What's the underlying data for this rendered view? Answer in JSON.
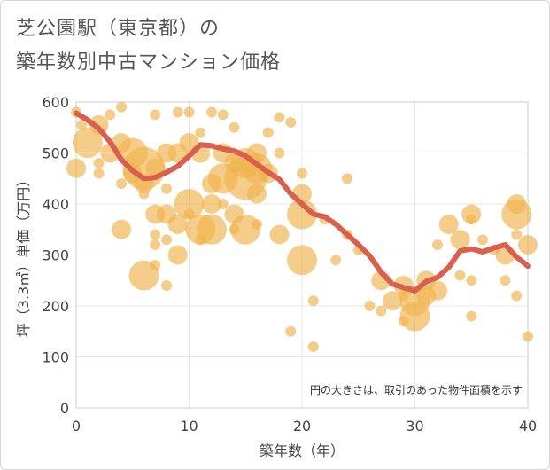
{
  "title_lines": [
    "芝公園駅（東京都）の",
    "築年数別中古マンション価格"
  ],
  "colors": {
    "bubble": "#f0b24d",
    "trend": "#d9604f",
    "grid": "#e6e6e6",
    "plot_border": "#cccccc"
  },
  "chart_data": {
    "type": "scatter",
    "title": "芝公園駅（東京都）の 築年数別中古マンション価格",
    "xlabel": "築年数（年）",
    "ylabel": "坪（3.3㎡）単価（万円）",
    "xlim": [
      0,
      40
    ],
    "ylim": [
      0,
      600
    ],
    "xticks": [
      0,
      10,
      20,
      30,
      40
    ],
    "yticks": [
      0,
      100,
      200,
      300,
      400,
      500,
      600
    ],
    "grid": true,
    "annotation": "円の大きさは、取引のあった物件面積を示す",
    "points": [
      {
        "x": 0,
        "y": 580,
        "s": 1
      },
      {
        "x": 0,
        "y": 470,
        "s": 2
      },
      {
        "x": 0.5,
        "y": 555,
        "s": 1
      },
      {
        "x": 1,
        "y": 520,
        "s": 3
      },
      {
        "x": 2,
        "y": 555,
        "s": 2
      },
      {
        "x": 2,
        "y": 480,
        "s": 1
      },
      {
        "x": 2,
        "y": 460,
        "s": 1
      },
      {
        "x": 3,
        "y": 575,
        "s": 1
      },
      {
        "x": 3,
        "y": 500,
        "s": 2
      },
      {
        "x": 4,
        "y": 590,
        "s": 1
      },
      {
        "x": 4,
        "y": 520,
        "s": 2
      },
      {
        "x": 4,
        "y": 440,
        "s": 1
      },
      {
        "x": 4,
        "y": 350,
        "s": 2
      },
      {
        "x": 5,
        "y": 500,
        "s": 3
      },
      {
        "x": 5,
        "y": 460,
        "s": 2
      },
      {
        "x": 6,
        "y": 470,
        "s": 4
      },
      {
        "x": 6,
        "y": 440,
        "s": 2
      },
      {
        "x": 6,
        "y": 420,
        "s": 1
      },
      {
        "x": 6,
        "y": 260,
        "s": 3
      },
      {
        "x": 7,
        "y": 575,
        "s": 1
      },
      {
        "x": 7,
        "y": 470,
        "s": 2
      },
      {
        "x": 7,
        "y": 380,
        "s": 2
      },
      {
        "x": 7,
        "y": 340,
        "s": 1
      },
      {
        "x": 7,
        "y": 320,
        "s": 1
      },
      {
        "x": 7,
        "y": 280,
        "s": 1
      },
      {
        "x": 8,
        "y": 500,
        "s": 2
      },
      {
        "x": 8,
        "y": 430,
        "s": 1
      },
      {
        "x": 8,
        "y": 380,
        "s": 2
      },
      {
        "x": 8,
        "y": 330,
        "s": 1
      },
      {
        "x": 8,
        "y": 240,
        "s": 1
      },
      {
        "x": 9,
        "y": 580,
        "s": 1
      },
      {
        "x": 9,
        "y": 500,
        "s": 2
      },
      {
        "x": 9,
        "y": 360,
        "s": 2
      },
      {
        "x": 9,
        "y": 300,
        "s": 2
      },
      {
        "x": 10,
        "y": 580,
        "s": 1
      },
      {
        "x": 10,
        "y": 520,
        "s": 2
      },
      {
        "x": 10,
        "y": 400,
        "s": 3
      },
      {
        "x": 10,
        "y": 380,
        "s": 1
      },
      {
        "x": 11,
        "y": 540,
        "s": 1
      },
      {
        "x": 11,
        "y": 500,
        "s": 2
      },
      {
        "x": 11,
        "y": 350,
        "s": 3
      },
      {
        "x": 11,
        "y": 330,
        "s": 1
      },
      {
        "x": 12,
        "y": 580,
        "s": 1
      },
      {
        "x": 12,
        "y": 440,
        "s": 2
      },
      {
        "x": 12,
        "y": 400,
        "s": 2
      },
      {
        "x": 12,
        "y": 350,
        "s": 3
      },
      {
        "x": 13,
        "y": 575,
        "s": 1
      },
      {
        "x": 13,
        "y": 500,
        "s": 2
      },
      {
        "x": 13,
        "y": 450,
        "s": 3
      },
      {
        "x": 13,
        "y": 400,
        "s": 1
      },
      {
        "x": 14,
        "y": 550,
        "s": 1
      },
      {
        "x": 14,
        "y": 480,
        "s": 2
      },
      {
        "x": 14,
        "y": 380,
        "s": 2
      },
      {
        "x": 14,
        "y": 350,
        "s": 1
      },
      {
        "x": 15,
        "y": 480,
        "s": 3
      },
      {
        "x": 15,
        "y": 450,
        "s": 4
      },
      {
        "x": 15,
        "y": 350,
        "s": 3
      },
      {
        "x": 16,
        "y": 500,
        "s": 2
      },
      {
        "x": 16,
        "y": 470,
        "s": 3
      },
      {
        "x": 16,
        "y": 420,
        "s": 2
      },
      {
        "x": 16,
        "y": 360,
        "s": 1
      },
      {
        "x": 17,
        "y": 540,
        "s": 1
      },
      {
        "x": 17,
        "y": 460,
        "s": 2
      },
      {
        "x": 18,
        "y": 570,
        "s": 1
      },
      {
        "x": 18,
        "y": 500,
        "s": 1
      },
      {
        "x": 18,
        "y": 340,
        "s": 2
      },
      {
        "x": 19,
        "y": 560,
        "s": 1
      },
      {
        "x": 19,
        "y": 150,
        "s": 1
      },
      {
        "x": 20,
        "y": 460,
        "s": 1
      },
      {
        "x": 20,
        "y": 420,
        "s": 2
      },
      {
        "x": 20,
        "y": 380,
        "s": 3
      },
      {
        "x": 20,
        "y": 290,
        "s": 3
      },
      {
        "x": 21,
        "y": 210,
        "s": 1
      },
      {
        "x": 21,
        "y": 120,
        "s": 1
      },
      {
        "x": 22,
        "y": 370,
        "s": 1
      },
      {
        "x": 23,
        "y": 290,
        "s": 1
      },
      {
        "x": 24,
        "y": 450,
        "s": 1
      },
      {
        "x": 24,
        "y": 340,
        "s": 1
      },
      {
        "x": 25,
        "y": 310,
        "s": 1
      },
      {
        "x": 26,
        "y": 200,
        "s": 1
      },
      {
        "x": 27,
        "y": 250,
        "s": 2
      },
      {
        "x": 27,
        "y": 190,
        "s": 1
      },
      {
        "x": 28,
        "y": 210,
        "s": 2
      },
      {
        "x": 29,
        "y": 240,
        "s": 2
      },
      {
        "x": 29,
        "y": 220,
        "s": 1
      },
      {
        "x": 29,
        "y": 170,
        "s": 1
      },
      {
        "x": 30,
        "y": 210,
        "s": 3
      },
      {
        "x": 30,
        "y": 180,
        "s": 3
      },
      {
        "x": 31,
        "y": 250,
        "s": 2
      },
      {
        "x": 31,
        "y": 220,
        "s": 2
      },
      {
        "x": 32,
        "y": 320,
        "s": 1
      },
      {
        "x": 32,
        "y": 230,
        "s": 2
      },
      {
        "x": 33,
        "y": 360,
        "s": 2
      },
      {
        "x": 34,
        "y": 330,
        "s": 2
      },
      {
        "x": 34,
        "y": 260,
        "s": 1
      },
      {
        "x": 35,
        "y": 380,
        "s": 2
      },
      {
        "x": 35,
        "y": 370,
        "s": 1
      },
      {
        "x": 35,
        "y": 250,
        "s": 1
      },
      {
        "x": 35,
        "y": 180,
        "s": 1
      },
      {
        "x": 36,
        "y": 330,
        "s": 1
      },
      {
        "x": 37,
        "y": 310,
        "s": 1
      },
      {
        "x": 38,
        "y": 300,
        "s": 2
      },
      {
        "x": 38,
        "y": 250,
        "s": 1
      },
      {
        "x": 39,
        "y": 400,
        "s": 2
      },
      {
        "x": 39,
        "y": 380,
        "s": 3
      },
      {
        "x": 39,
        "y": 340,
        "s": 1
      },
      {
        "x": 39,
        "y": 220,
        "s": 1
      },
      {
        "x": 40,
        "y": 320,
        "s": 2
      },
      {
        "x": 40,
        "y": 140,
        "s": 1
      }
    ],
    "trend": {
      "x": [
        0,
        1,
        2,
        3,
        4,
        5,
        6,
        7,
        8,
        9,
        10,
        11,
        12,
        13,
        14,
        15,
        16,
        17,
        18,
        19,
        20,
        21,
        22,
        23,
        24,
        25,
        26,
        27,
        28,
        29,
        30,
        31,
        32,
        33,
        34,
        35,
        36,
        37,
        38,
        39,
        40
      ],
      "y": [
        578,
        565,
        548,
        522,
        487,
        465,
        450,
        452,
        462,
        474,
        494,
        516,
        514,
        508,
        504,
        494,
        478,
        462,
        448,
        420,
        400,
        380,
        375,
        360,
        340,
        320,
        298,
        266,
        243,
        236,
        230,
        248,
        256,
        276,
        308,
        312,
        306,
        314,
        320,
        296,
        278
      ]
    }
  }
}
